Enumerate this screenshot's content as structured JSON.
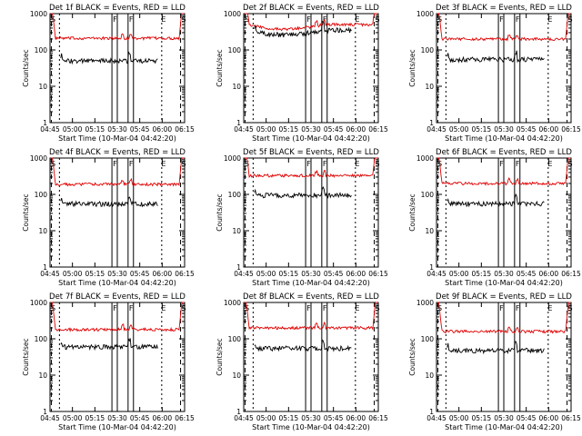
{
  "chart_data": [
    {
      "type": "line",
      "title": "Det 1f BLACK = Events, RED = LLD",
      "xlabel": "Start Time (10-Mar-04 04:42:20)",
      "ylabel": "Counts/sec",
      "yscale": "log",
      "ylim": [
        1,
        1000
      ],
      "xlim": [
        0,
        100
      ],
      "xticks": [
        "04:45",
        "05:00",
        "05:15",
        "05:30",
        "05:45",
        "06:00",
        "06:15"
      ],
      "yticks": [
        "1",
        "10",
        "100",
        "1000"
      ],
      "markers": [
        "S",
        "F",
        "F",
        "E",
        "S"
      ],
      "series": [
        {
          "name": "RED",
          "color": "#e00000",
          "base": 210
        },
        {
          "name": "BLACK",
          "color": "#000000",
          "base": 50
        }
      ]
    },
    {
      "type": "line",
      "title": "Det 2f BLACK = Events, RED = LLD",
      "xlabel": "Start Time (10-Mar-04 04:42:20)",
      "ylabel": "Counts/sec",
      "yscale": "log",
      "ylim": [
        1,
        1000
      ],
      "xlim": [
        0,
        100
      ],
      "xticks": [
        "04:45",
        "05:00",
        "05:15",
        "05:30",
        "05:45",
        "06:00",
        "06:15"
      ],
      "yticks": [
        "1",
        "10",
        "100",
        "1000"
      ],
      "markers": [
        "S",
        "F",
        "F",
        "E",
        "S"
      ],
      "series": [
        {
          "name": "RED",
          "color": "#e00000",
          "base": 500
        },
        {
          "name": "BLACK",
          "color": "#000000",
          "base": 350
        }
      ]
    },
    {
      "type": "line",
      "title": "Det 3f BLACK = Events, RED = LLD",
      "xlabel": "Start Time (10-Mar-04 04:42:20)",
      "ylabel": "Counts/sec",
      "yscale": "log",
      "ylim": [
        1,
        1000
      ],
      "xlim": [
        0,
        100
      ],
      "xticks": [
        "04:45",
        "05:00",
        "05:15",
        "05:30",
        "05:45",
        "06:00",
        "06:15"
      ],
      "yticks": [
        "1",
        "10",
        "100",
        "1000"
      ],
      "markers": [
        "S",
        "F",
        "F",
        "E",
        "S"
      ],
      "series": [
        {
          "name": "RED",
          "color": "#e00000",
          "base": 200
        },
        {
          "name": "BLACK",
          "color": "#000000",
          "base": 55
        }
      ]
    },
    {
      "type": "line",
      "title": "Det 4f BLACK = Events, RED = LLD",
      "xlabel": "Start Time (10-Mar-04 04:42:20)",
      "ylabel": "Counts/sec",
      "yscale": "log",
      "ylim": [
        1,
        1000
      ],
      "xlim": [
        0,
        100
      ],
      "xticks": [
        "04:45",
        "05:00",
        "05:15",
        "05:30",
        "05:45",
        "06:00",
        "06:15"
      ],
      "yticks": [
        "1",
        "10",
        "100",
        "1000"
      ],
      "markers": [
        "S",
        "F",
        "F",
        "E",
        "S"
      ],
      "series": [
        {
          "name": "RED",
          "color": "#e00000",
          "base": 190
        },
        {
          "name": "BLACK",
          "color": "#000000",
          "base": 55
        }
      ]
    },
    {
      "type": "line",
      "title": "Det 5f BLACK = Events, RED = LLD",
      "xlabel": "Start Time (10-Mar-04 04:42:20)",
      "ylabel": "Counts/sec",
      "yscale": "log",
      "ylim": [
        1,
        1000
      ],
      "xlim": [
        0,
        100
      ],
      "xticks": [
        "04:45",
        "05:00",
        "05:15",
        "05:30",
        "05:45",
        "06:00",
        "06:15"
      ],
      "yticks": [
        "1",
        "10",
        "100",
        "1000"
      ],
      "markers": [
        "S",
        "F",
        "F",
        "E",
        "S"
      ],
      "series": [
        {
          "name": "RED",
          "color": "#e00000",
          "base": 330
        },
        {
          "name": "BLACK",
          "color": "#000000",
          "base": 95
        }
      ]
    },
    {
      "type": "line",
      "title": "Det 6f BLACK = Events, RED = LLD",
      "xlabel": "Start Time (10-Mar-04 04:42:20)",
      "ylabel": "Counts/sec",
      "yscale": "log",
      "ylim": [
        1,
        1000
      ],
      "xlim": [
        0,
        100
      ],
      "xticks": [
        "04:45",
        "05:00",
        "05:15",
        "05:30",
        "05:45",
        "06:00",
        "06:15"
      ],
      "yticks": [
        "1",
        "10",
        "100",
        "1000"
      ],
      "markers": [
        "S",
        "F",
        "F",
        "E",
        "S"
      ],
      "series": [
        {
          "name": "RED",
          "color": "#e00000",
          "base": 200
        },
        {
          "name": "BLACK",
          "color": "#000000",
          "base": 55
        }
      ]
    },
    {
      "type": "line",
      "title": "Det 7f BLACK = Events, RED = LLD",
      "xlabel": "Start Time (10-Mar-04 04:42:20)",
      "ylabel": "Counts/sec",
      "yscale": "log",
      "ylim": [
        1,
        1000
      ],
      "xlim": [
        0,
        100
      ],
      "xticks": [
        "04:45",
        "05:00",
        "05:15",
        "05:30",
        "05:45",
        "06:00",
        "06:15"
      ],
      "yticks": [
        "1",
        "10",
        "100",
        "1000"
      ],
      "markers": [
        "S",
        "F",
        "F",
        "E",
        "S"
      ],
      "series": [
        {
          "name": "RED",
          "color": "#e00000",
          "base": 180
        },
        {
          "name": "BLACK",
          "color": "#000000",
          "base": 60
        }
      ]
    },
    {
      "type": "line",
      "title": "Det 8f BLACK = Events, RED = LLD",
      "xlabel": "Start Time (10-Mar-04 04:42:20)",
      "ylabel": "Counts/sec",
      "yscale": "log",
      "ylim": [
        1,
        1000
      ],
      "xlim": [
        0,
        100
      ],
      "xticks": [
        "04:45",
        "05:00",
        "05:15",
        "05:30",
        "05:45",
        "06:00",
        "06:15"
      ],
      "yticks": [
        "1",
        "10",
        "100",
        "1000"
      ],
      "markers": [
        "S",
        "F",
        "F",
        "E",
        "S"
      ],
      "series": [
        {
          "name": "RED",
          "color": "#e00000",
          "base": 200
        },
        {
          "name": "BLACK",
          "color": "#000000",
          "base": 55
        }
      ]
    },
    {
      "type": "line",
      "title": "Det 9f BLACK = Events, RED = LLD",
      "xlabel": "Start Time (10-Mar-04 04:42:20)",
      "ylabel": "Counts/sec",
      "yscale": "log",
      "ylim": [
        1,
        1000
      ],
      "xlim": [
        0,
        100
      ],
      "xticks": [
        "04:45",
        "05:00",
        "05:15",
        "05:30",
        "05:45",
        "06:00",
        "06:15"
      ],
      "yticks": [
        "1",
        "10",
        "100",
        "1000"
      ],
      "markers": [
        "S",
        "F",
        "F",
        "E",
        "S"
      ],
      "series": [
        {
          "name": "RED",
          "color": "#e00000",
          "base": 160
        },
        {
          "name": "BLACK",
          "color": "#000000",
          "base": 48
        }
      ]
    }
  ]
}
